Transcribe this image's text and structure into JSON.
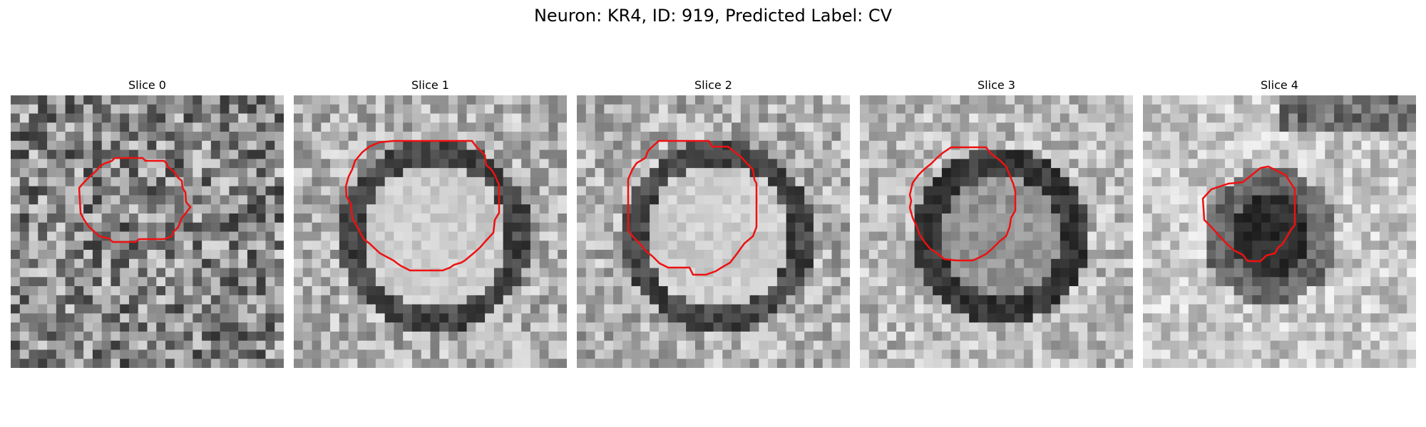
{
  "figure": {
    "title": "Neuron: KR4, ID: 919, Predicted Label: CV"
  },
  "colors": {
    "contour": "#ee1111",
    "background": "#ffffff"
  },
  "panels": [
    {
      "title": "Slice 0",
      "seed": 11,
      "mode": "noisy"
    },
    {
      "title": "Slice 1",
      "seed": 23,
      "mode": "ring-bright"
    },
    {
      "title": "Slice 2",
      "seed": 37,
      "mode": "ring-bright"
    },
    {
      "title": "Slice 3",
      "seed": 53,
      "mode": "ring-medium"
    },
    {
      "title": "Slice 4",
      "seed": 71,
      "mode": "dark-center"
    }
  ]
}
